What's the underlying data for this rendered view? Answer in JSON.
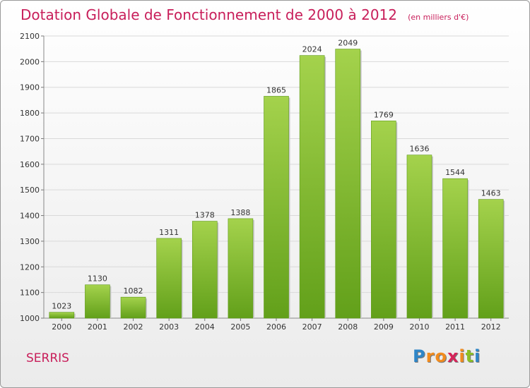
{
  "chart_title": "Dotation Globale de Fonctionnement de 2000 à 2012",
  "chart_unit": "(en milliers d'€)",
  "commune": "SERRIS",
  "logo_letters": [
    "P",
    "r",
    "o",
    "x",
    "i",
    "t",
    "i"
  ],
  "logo_colors": [
    "#2f86c8",
    "#f28c1e",
    "#f28c1e",
    "#d6245a",
    "#f28c1e",
    "#8cbf26",
    "#2f86c8"
  ],
  "colors": {
    "title": "#c81e5a",
    "bar_light": "#a4d24c",
    "bar_dark": "#62a01a"
  },
  "chart_data": {
    "type": "bar",
    "title": "Dotation Globale de Fonctionnement de 2000 à 2012",
    "categories": [
      "2000",
      "2001",
      "2002",
      "2003",
      "2004",
      "2005",
      "2006",
      "2007",
      "2008",
      "2009",
      "2010",
      "2011",
      "2012"
    ],
    "values": [
      1023,
      1130,
      1082,
      1311,
      1378,
      1388,
      1865,
      2024,
      2049,
      1769,
      1636,
      1544,
      1463
    ],
    "ylim": [
      1000,
      2100
    ],
    "yticks": [
      1000,
      1100,
      1200,
      1300,
      1400,
      1500,
      1600,
      1700,
      1800,
      1900,
      2000,
      2100
    ],
    "grid": true,
    "data_labels": true
  }
}
